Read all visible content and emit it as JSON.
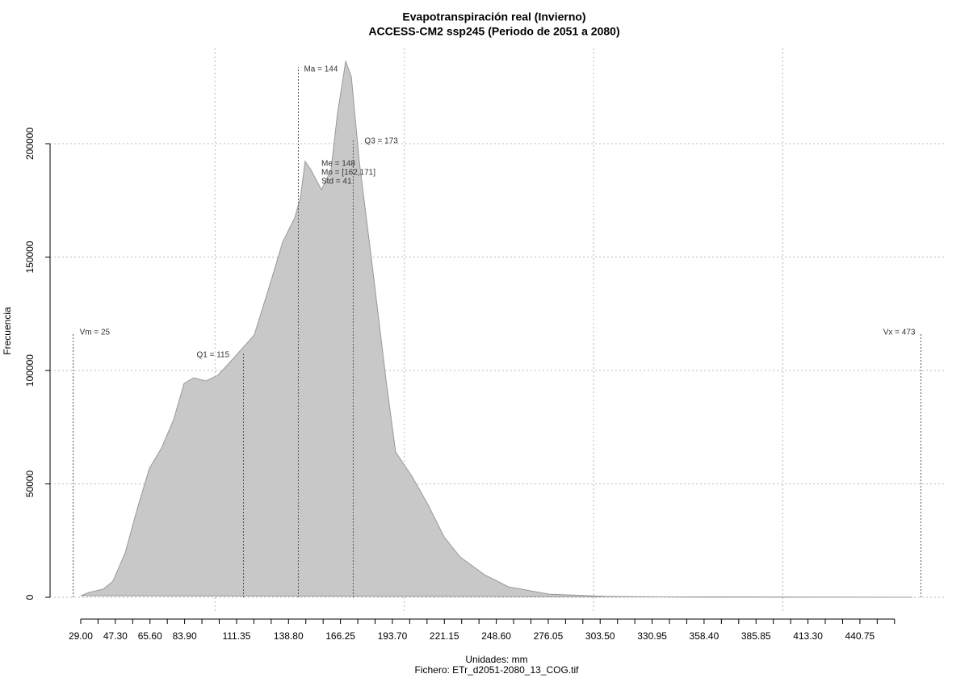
{
  "chart_data": {
    "type": "area",
    "title": "Evapotranspiración real (Invierno)",
    "subtitle": "ACCESS-CM2 ssp245 (Periodo de 2051 a 2080)",
    "y_label": "Frecuencia",
    "x_label": "Unidades: mm",
    "caption": "Fichero: ETr_d2051-2080_13_COG.tif",
    "color": "#c8c8c8",
    "x": [
      29,
      33.3,
      40.9,
      46,
      52.5,
      58.9,
      65.3,
      71.7,
      78.1,
      83.6,
      88.7,
      95.1,
      101.5,
      110.1,
      120.7,
      129.3,
      135.7,
      142.1,
      145.1,
      147.6,
      150.6,
      156.2,
      161.3,
      164.7,
      169,
      172,
      176.2,
      182.6,
      190.3,
      195.4,
      204,
      212.5,
      221,
      229.5,
      242.3,
      255.1,
      276.5,
      306.4,
      349,
      468.5
    ],
    "values": [
      700,
      2100,
      3600,
      7100,
      19600,
      39100,
      56900,
      65800,
      78300,
      94300,
      96800,
      95400,
      97900,
      105700,
      115700,
      138800,
      156600,
      167300,
      176200,
      192200,
      188600,
      179700,
      188600,
      213500,
      236300,
      229500,
      192200,
      149500,
      96100,
      64100,
      53400,
      40900,
      26700,
      17800,
      10000,
      4600,
      1400,
      400,
      100,
      0
    ],
    "xlim": [
      12.8,
      485.6
    ],
    "ylim": [
      -7100,
      242000
    ],
    "yticks": [
      0,
      50000,
      100000,
      150000,
      200000
    ],
    "xticks": [
      {
        "value": 29,
        "label": "29.00"
      },
      {
        "value": 47.3,
        "label": "47.30"
      },
      {
        "value": 65.6,
        "label": "65.60"
      },
      {
        "value": 83.9,
        "label": "83.90"
      },
      {
        "value": 111.35,
        "label": "111.35"
      },
      {
        "value": 138.8,
        "label": "138.80"
      },
      {
        "value": 166.25,
        "label": "166.25"
      },
      {
        "value": 193.7,
        "label": "193.70"
      },
      {
        "value": 221.15,
        "label": "221.15"
      },
      {
        "value": 248.6,
        "label": "248.60"
      },
      {
        "value": 276.05,
        "label": "276.05"
      },
      {
        "value": 303.5,
        "label": "303.50"
      },
      {
        "value": 330.95,
        "label": "330.95"
      },
      {
        "value": 358.4,
        "label": "358.40"
      },
      {
        "value": 385.85,
        "label": "385.85"
      },
      {
        "value": 413.3,
        "label": "413.30"
      },
      {
        "value": 440.75,
        "label": "440.75"
      }
    ],
    "xticks_minor": [
      38.15,
      56.45,
      74.75,
      93.05,
      102.2,
      120.5,
      129.65,
      147.95,
      157.1,
      175.4,
      184.55,
      202.85,
      212,
      230.3,
      239.45,
      257.75,
      266.9,
      285.2,
      294.35,
      312.65,
      321.8,
      340.1,
      349.25,
      367.55,
      376.7,
      395,
      404.15,
      422.45,
      431.6,
      449.9,
      459.05
    ],
    "xgrid": [
      100,
      200,
      300,
      400
    ],
    "grid": true,
    "stat_lines": [
      {
        "label": "Vm = 25",
        "value": 25
      },
      {
        "label": "Q1 = 115",
        "value": 115
      },
      {
        "label": "Ma = 144",
        "value": 144
      },
      {
        "label": "Q3 = 173",
        "value": 173
      },
      {
        "label": "Vx = 473",
        "value": 473
      }
    ],
    "stats_text": [
      "Me = 148",
      "Mo = [162,171]",
      "Std = 41"
    ]
  }
}
